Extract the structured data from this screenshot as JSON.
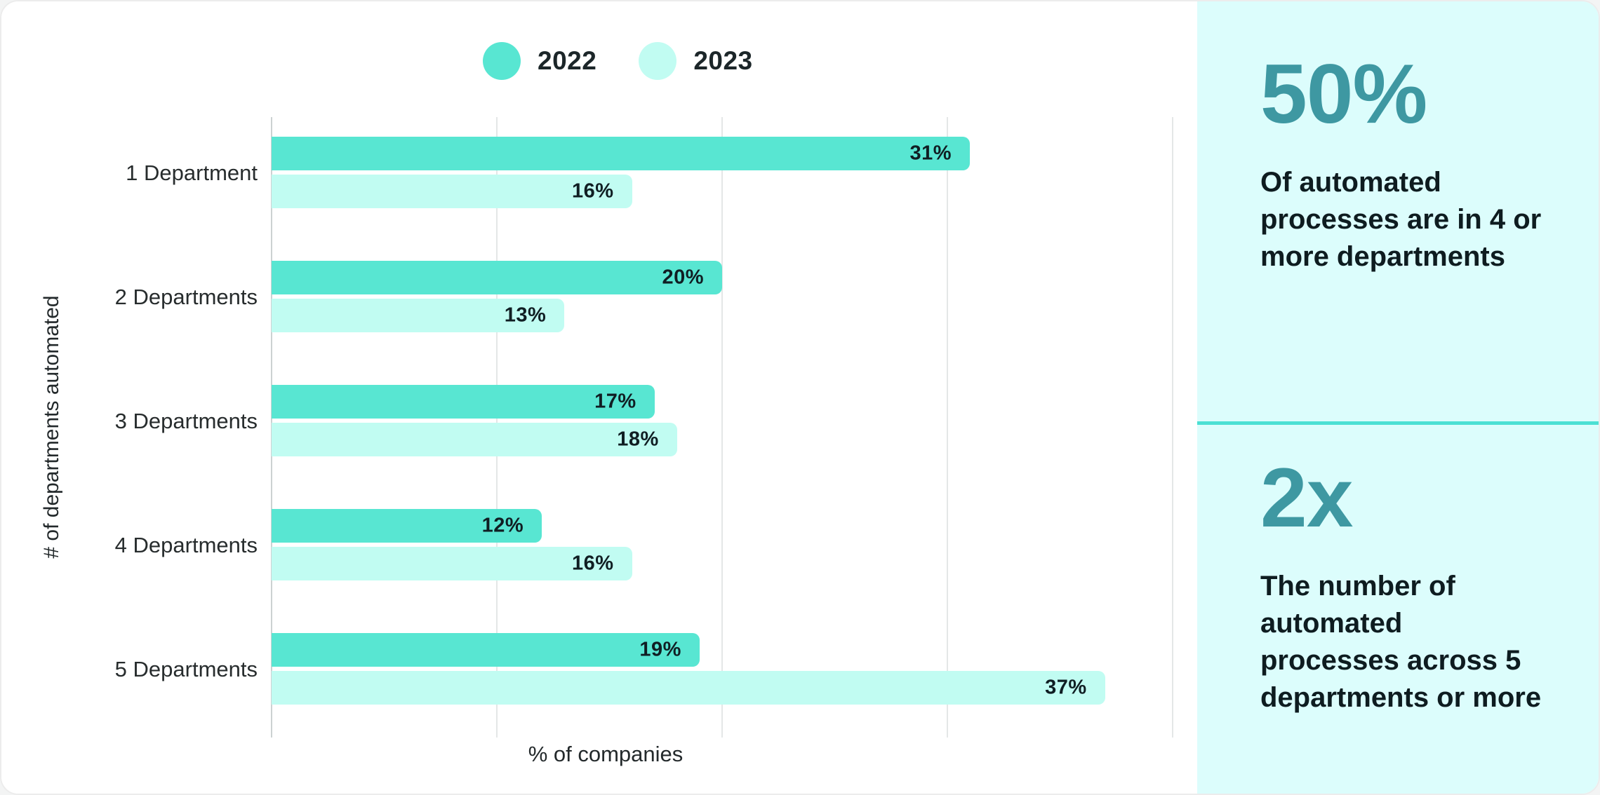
{
  "chart_data": {
    "type": "bar",
    "orientation": "horizontal",
    "title": "",
    "xlabel": "% of companies",
    "ylabel": "# of departments automated",
    "categories": [
      "1 Department",
      "2 Departments",
      "3 Departments",
      "4 Departments",
      "5 Departments"
    ],
    "series": [
      {
        "name": "2022",
        "color": "#58E6D2",
        "values": [
          31,
          20,
          17,
          12,
          19
        ]
      },
      {
        "name": "2023",
        "color": "#C1FCF2",
        "values": [
          16,
          13,
          18,
          16,
          37
        ]
      }
    ],
    "value_suffix": "%",
    "xlim": [
      0,
      40
    ],
    "gridlines": [
      0,
      10,
      20,
      30,
      40
    ],
    "grid": true,
    "legend_position": "top"
  },
  "sidebar": {
    "background_color": "#DCFDFC",
    "accent_color": "#3E98A2",
    "divider_color": "#4BE0D4",
    "stats": [
      {
        "value": "50%",
        "lines": [
          "Of automated",
          "processes are in 4 or",
          "more departments"
        ]
      },
      {
        "value": "2x",
        "lines": [
          "The number of",
          "automated",
          "processes across 5",
          "departments or more"
        ]
      }
    ]
  }
}
